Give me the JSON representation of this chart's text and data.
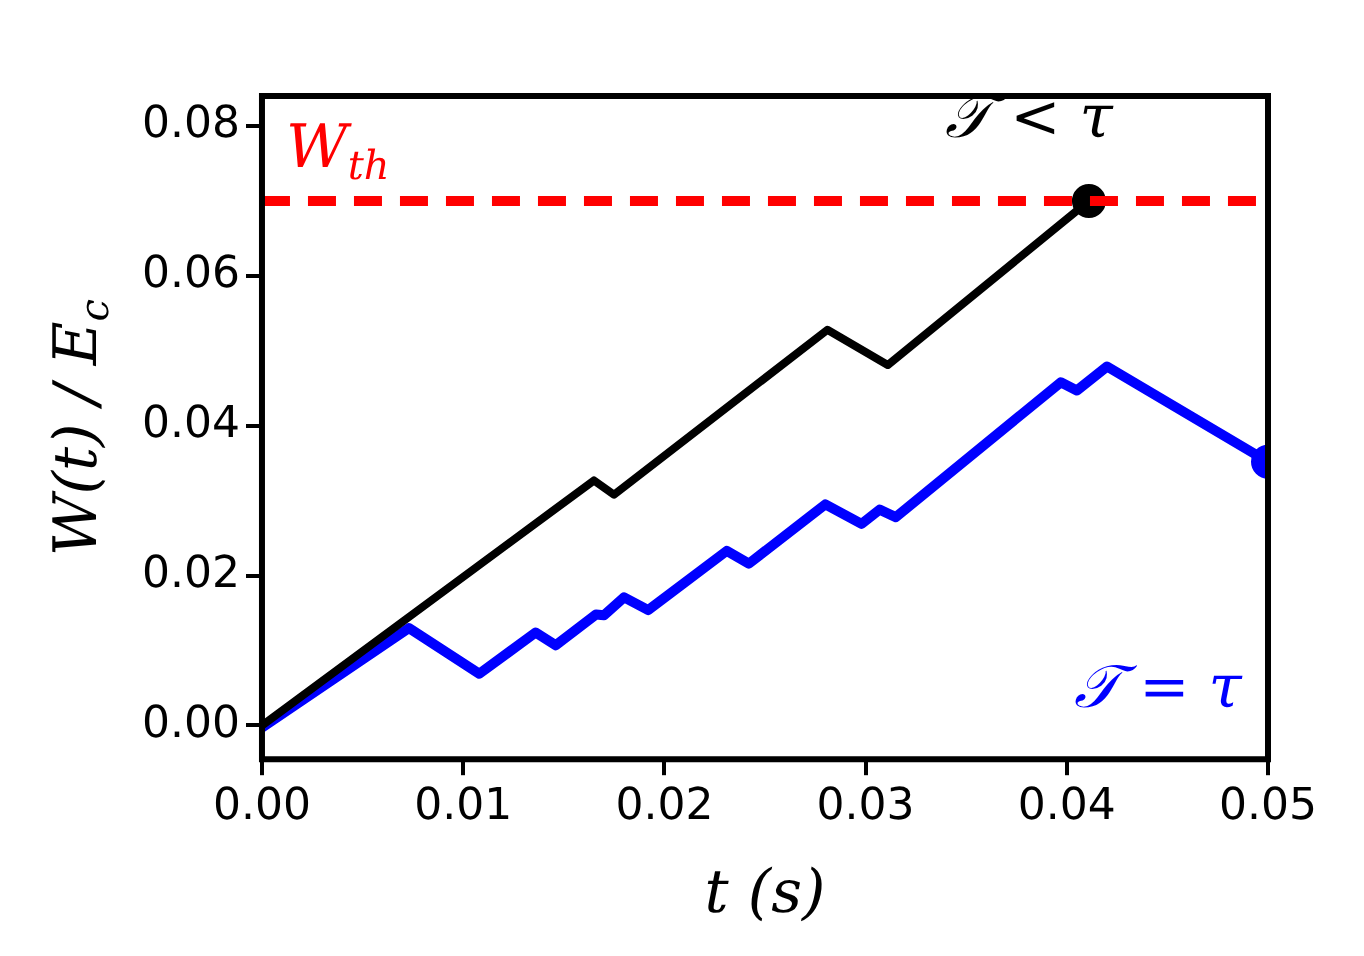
{
  "chart_data": {
    "type": "line",
    "xlabel": "t (s)",
    "ylabel": "W(t) / E$_{c}$",
    "xlim": [
      0,
      0.05
    ],
    "xticks": [
      {
        "value": 0,
        "label": "0.00"
      },
      {
        "value": 0.01,
        "label": "0.01"
      },
      {
        "value": 0.02,
        "label": "0.02"
      },
      {
        "value": 0.03,
        "label": "0.03"
      },
      {
        "value": 0.04,
        "label": "0.04"
      },
      {
        "value": 0.05,
        "label": "0.05"
      }
    ],
    "ylim": [
      -0.0045,
      0.084
    ],
    "yticks": [
      {
        "value": 0,
        "label": "0.00"
      },
      {
        "value": 0.02,
        "label": "0.02"
      },
      {
        "value": 0.04,
        "label": "0.04"
      },
      {
        "value": 0.06,
        "label": "0.06"
      },
      {
        "value": 0.08,
        "label": "0.08"
      }
    ],
    "grid": false,
    "legend": false,
    "marker": "none",
    "line_style": "solid",
    "ref_lines": [
      {
        "axis": "y",
        "value": 0.07,
        "label": "W$_{th}$",
        "color": "#ff0000",
        "line_style": "dashed"
      }
    ],
    "series": [
      {
        "name": "𝒯 < τ",
        "color": "#000000",
        "x": [
          0,
          0.0165,
          0.0175,
          0.0281,
          0.0311,
          0.0411
        ],
        "values": [
          0,
          0.0327,
          0.0308,
          0.0528,
          0.0481,
          0.07
        ]
      },
      {
        "name": "𝒯 = τ",
        "color": "#0000ff",
        "x": [
          0,
          0.0073,
          0.0108,
          0.0136,
          0.0146,
          0.0166,
          0.017,
          0.018,
          0.0192,
          0.0231,
          0.0242,
          0.028,
          0.0298,
          0.0307,
          0.0315,
          0.0397,
          0.0405,
          0.042,
          0.05
        ],
        "values": [
          -0.0003,
          0.013,
          0.0069,
          0.0124,
          0.0107,
          0.0148,
          0.0147,
          0.0171,
          0.0154,
          0.0233,
          0.0216,
          0.0295,
          0.0269,
          0.0288,
          0.0278,
          0.0458,
          0.0447,
          0.0479,
          0.0352
        ]
      },
      {
        "type": "scatter",
        "marker": "circle",
        "color": "#000000",
        "x": [
          0.0411
        ],
        "values": [
          0.07
        ]
      },
      {
        "type": "scatter",
        "marker": "circle",
        "color": "#0000ff",
        "x": [
          0.05
        ],
        "values": [
          0.0352
        ]
      }
    ]
  }
}
